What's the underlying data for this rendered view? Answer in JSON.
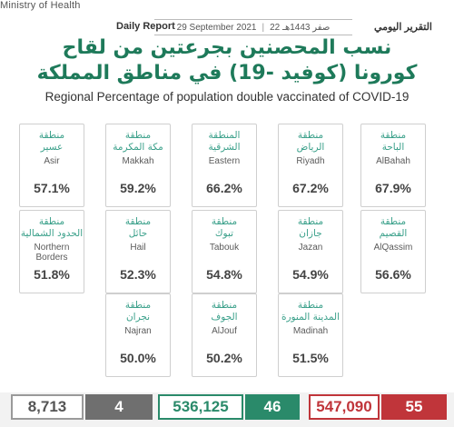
{
  "header": {
    "ministry": "Ministry of Health",
    "report_en": "Daily Report",
    "date": "29 September 2021",
    "hijri": "22 صفر 1443هـ",
    "report_ar": "التقرير اليومي"
  },
  "title": {
    "ar_line1": "نسب المحصنين بجرعتين من لقاح",
    "ar_line2": "كورونا (كوفيد -19) في مناطق المملكة",
    "en": "Regional Percentage of population double vaccinated of COVID-19"
  },
  "regions": [
    {
      "ar1": "منطقة",
      "ar2": "عسير",
      "en": "Asir",
      "pct": "57.1%"
    },
    {
      "ar1": "منطقة",
      "ar2": "مكة المكرمة",
      "en": "Makkah",
      "pct": "59.2%"
    },
    {
      "ar1": "المنطقة",
      "ar2": "الشرقية",
      "en": "Eastern",
      "pct": "66.2%"
    },
    {
      "ar1": "منطقة",
      "ar2": "الرياض",
      "en": "Riyadh",
      "pct": "67.2%"
    },
    {
      "ar1": "منطقة",
      "ar2": "الباحة",
      "en": "AlBahah",
      "pct": "67.9%"
    },
    {
      "ar1": "منطقة",
      "ar2": "الحدود الشمالية",
      "en": "Northern Borders",
      "pct": "51.8%"
    },
    {
      "ar1": "منطقة",
      "ar2": "حائل",
      "en": "Hail",
      "pct": "52.3%"
    },
    {
      "ar1": "منطقة",
      "ar2": "تبوك",
      "en": "Tabouk",
      "pct": "54.8%"
    },
    {
      "ar1": "منطقة",
      "ar2": "جازان",
      "en": "Jazan",
      "pct": "54.9%"
    },
    {
      "ar1": "منطقة",
      "ar2": "القصيم",
      "en": "AlQassim",
      "pct": "56.6%"
    },
    {
      "ar1": "منطقة",
      "ar2": "نجران",
      "en": "Najran",
      "pct": "50.0%"
    },
    {
      "ar1": "منطقة",
      "ar2": "الجوف",
      "en": "AlJouf",
      "pct": "50.2%"
    },
    {
      "ar1": "منطقة",
      "ar2": "المدينة المنورة",
      "en": "Madinah",
      "pct": "51.5%"
    }
  ],
  "stats": [
    {
      "value": "8,713",
      "color": "#555555",
      "border": "#9a9a9a",
      "fill": "#ffffff"
    },
    {
      "value": "4",
      "color": "#ffffff",
      "border": "#6f6f6f",
      "fill": "#6f6f6f"
    },
    {
      "value": "536,125",
      "color": "#2a8a6a",
      "border": "#2a8a6a",
      "fill": "#ffffff"
    },
    {
      "value": "46",
      "color": "#ffffff",
      "border": "#2a8a6a",
      "fill": "#2a8a6a"
    },
    {
      "value": "547,090",
      "color": "#c0353a",
      "border": "#c0353a",
      "fill": "#ffffff"
    },
    {
      "value": "55",
      "color": "#ffffff",
      "border": "#c0353a",
      "fill": "#c0353a"
    }
  ]
}
